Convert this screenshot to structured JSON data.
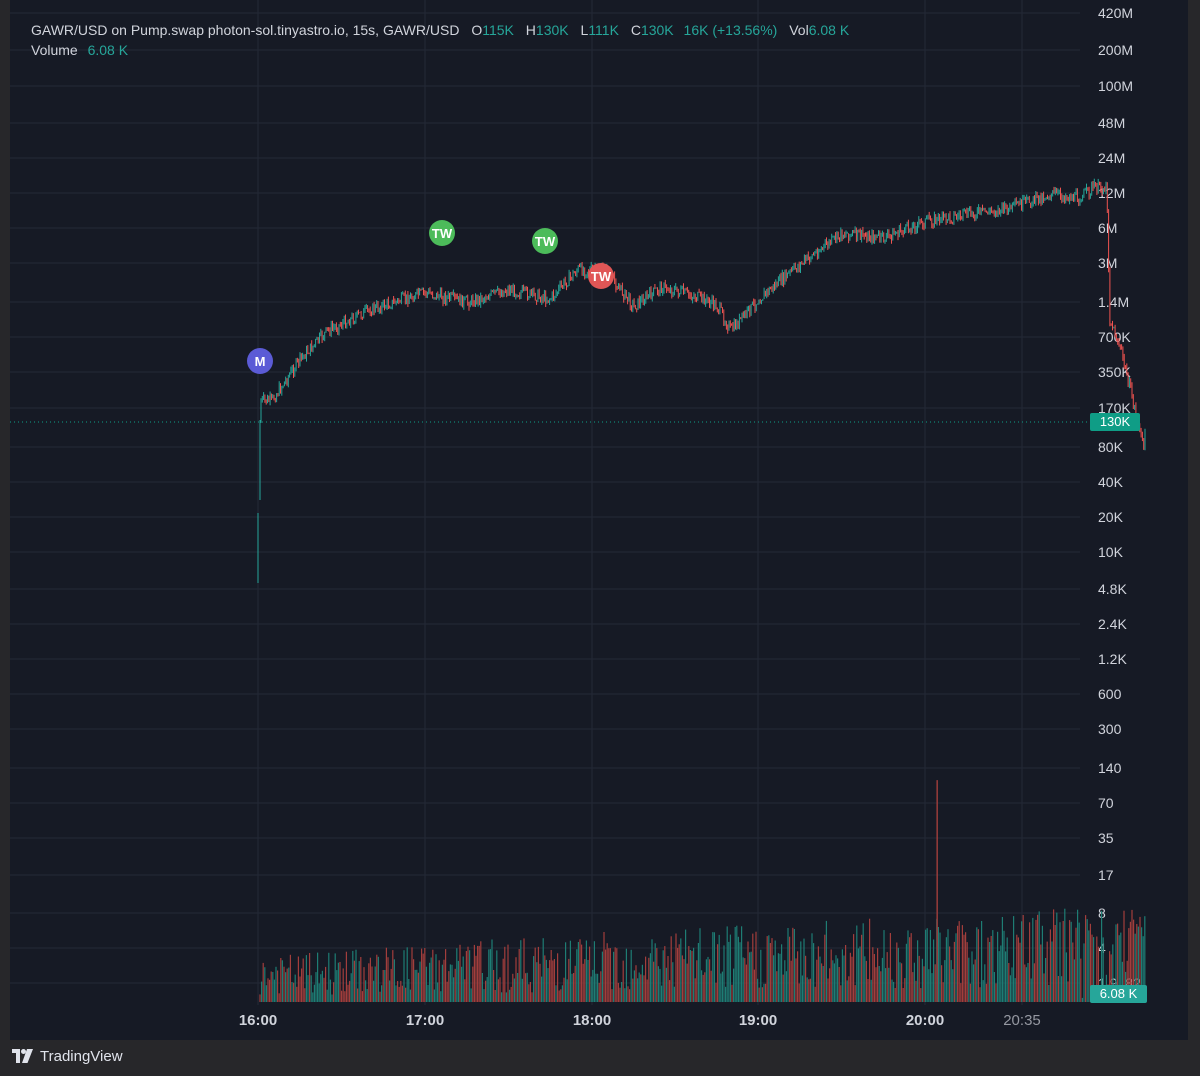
{
  "legend": {
    "title": "GAWR/USD on Pump.swap photon-sol.tinyastro.io, 15s, GAWR/USD",
    "o_label": "O",
    "o_value": "115K",
    "h_label": "H",
    "h_value": "130K",
    "l_label": "L",
    "l_value": "111K",
    "c_label": "C",
    "c_value": "130K",
    "change": "16K (+13.56%)",
    "vol_label": "Vol",
    "vol_value": "6.08 K",
    "volume_label": "Volume",
    "volume_value": "6.08 K"
  },
  "price_badge": "130K",
  "volume_badge": "6.08 K",
  "brand": "TradingView",
  "colors": {
    "up": "#26a69a",
    "down": "#ef5350",
    "bg": "#161a25",
    "grid": "#242936"
  },
  "chart_data": {
    "type": "candlestick",
    "interval": "15s",
    "y_scale": "log",
    "price_ticks": [
      "420M",
      "200M",
      "100M",
      "48M",
      "24M",
      "12M",
      "6M",
      "3M",
      "1.4M",
      "700K",
      "350K",
      "170K",
      "80K",
      "40K",
      "20K",
      "10K",
      "4.8K",
      "2.4K",
      "1.2K",
      "600",
      "300"
    ],
    "volume_ticks": [
      "140",
      "70",
      "35",
      "17",
      "8",
      "4",
      "1.9..82"
    ],
    "x_ticks": [
      "16:00",
      "17:00",
      "18:00",
      "19:00",
      "20:00",
      "20:35"
    ],
    "last_price": "130K",
    "price_path": [
      [
        "16:00",
        5000
      ],
      [
        "16:00",
        130000
      ],
      [
        "16:01",
        200000
      ],
      [
        "16:05",
        200000
      ],
      [
        "16:10",
        300000
      ],
      [
        "16:15",
        450000
      ],
      [
        "16:25",
        800000
      ],
      [
        "16:40",
        1200000
      ],
      [
        "17:00",
        1700000
      ],
      [
        "17:15",
        1400000
      ],
      [
        "17:30",
        1800000
      ],
      [
        "17:45",
        1500000
      ],
      [
        "17:55",
        2700000
      ],
      [
        "18:05",
        2600000
      ],
      [
        "18:15",
        1300000
      ],
      [
        "18:25",
        1900000
      ],
      [
        "18:40",
        1500000
      ],
      [
        "18:45",
        1300000
      ],
      [
        "18:50",
        800000
      ],
      [
        "19:00",
        1500000
      ],
      [
        "19:15",
        3000000
      ],
      [
        "19:30",
        5500000
      ],
      [
        "19:45",
        5000000
      ],
      [
        "20:00",
        7000000
      ],
      [
        "20:15",
        8000000
      ],
      [
        "20:30",
        9000000
      ],
      [
        "20:45",
        12000000
      ],
      [
        "20:55",
        11000000
      ],
      [
        "21:00",
        13500000
      ],
      [
        "21:05",
        13500000
      ],
      [
        "21:06",
        1000000
      ],
      [
        "21:10",
        550000
      ],
      [
        "21:15",
        170000
      ],
      [
        "21:18",
        80000
      ],
      [
        "21:19",
        130000
      ]
    ],
    "markers": [
      {
        "label": "M",
        "time": "16:00",
        "price": 400000,
        "color": "#5b5bd6"
      },
      {
        "label": "TW",
        "time": "17:06",
        "price": 6000000,
        "color": "#4cbb5a"
      },
      {
        "label": "TW",
        "time": "17:43",
        "price": 5500000,
        "color": "#4cbb5a"
      },
      {
        "label": "TW",
        "time": "18:03",
        "price": 2000000,
        "color": "#e05656"
      }
    ],
    "volume_spike": {
      "time": "19:50",
      "value": 150
    }
  }
}
